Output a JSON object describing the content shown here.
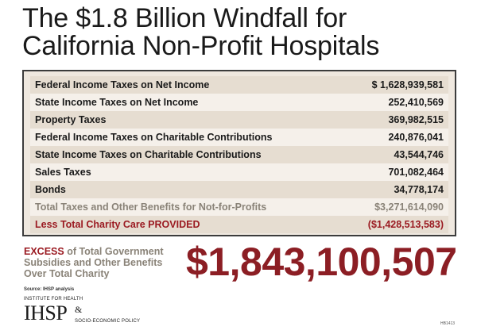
{
  "title": {
    "line1": "The $1.8 Billion Windfall for",
    "line2": "California Non-Profit Hospitals"
  },
  "table": {
    "rows": [
      {
        "label": "Federal Income Taxes on Net Income",
        "value": "$ 1,628,939,581"
      },
      {
        "label": "State Income Taxes on Net Income",
        "value": "252,410,569"
      },
      {
        "label": "Property Taxes",
        "value": "369,982,515"
      },
      {
        "label": "Federal Income Taxes on Charitable Contributions",
        "value": "240,876,041"
      },
      {
        "label": "State Income Taxes on Charitable Contributions",
        "value": "43,544,746"
      },
      {
        "label": "Sales Taxes",
        "value": "701,082,464"
      },
      {
        "label": "Bonds",
        "value": "34,778,174"
      }
    ],
    "total": {
      "label": "Total Taxes and Other Benefits for Not-for-Profits",
      "value": "$3,271,614,090"
    },
    "less": {
      "label": "Less Total Charity Care PROVIDED",
      "value": "($1,428,513,583)"
    }
  },
  "excess": {
    "accent": "EXCESS",
    "line1_rest": " of Total Government",
    "line2": "Subsidies and Other Benefits",
    "line3": "Over Total Charity"
  },
  "big_number": "$1,843,100,507",
  "source": "Source: IHSP analysis",
  "logo": {
    "top": "INSTITUTE FOR HEALTH",
    "mark": "IHSP",
    "amp": "&",
    "sub": "SOCIO-ECONOMIC POLICY"
  },
  "code": "HB1413",
  "colors": {
    "accent_red": "#9b1b22",
    "muted_gray": "#8a8378",
    "table_bg": "#efe8df"
  }
}
